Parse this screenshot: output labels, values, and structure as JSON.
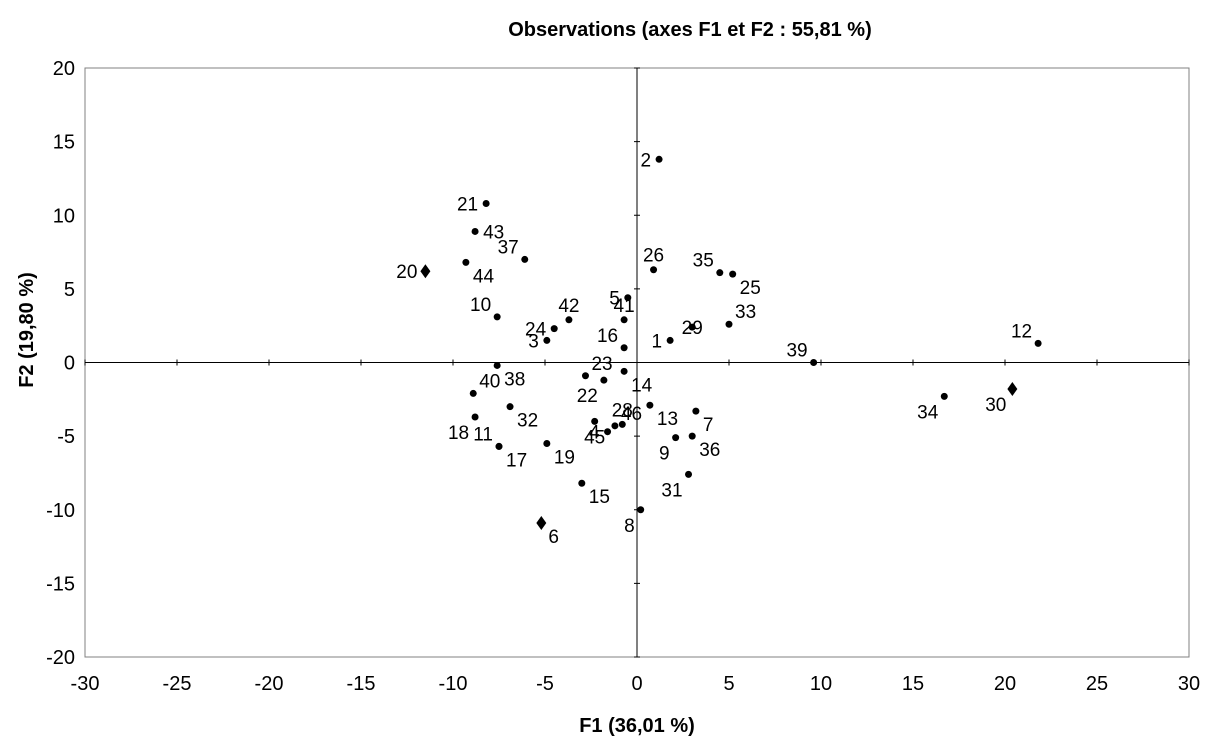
{
  "chart_data": {
    "type": "scatter",
    "title": "Observations (axes F1 et F2 : 55,81 %)",
    "xlabel": "F1 (36,01 %)",
    "ylabel": "F2 (19,80 %)",
    "xlim": [
      -30,
      30
    ],
    "ylim": [
      -20,
      20
    ],
    "x_ticks": [
      -30,
      -25,
      -20,
      -15,
      -10,
      -5,
      0,
      5,
      10,
      15,
      20,
      25,
      30
    ],
    "y_ticks": [
      -20,
      -15,
      -10,
      -5,
      0,
      5,
      10,
      15,
      20
    ],
    "x_tick_labels": [
      "-30",
      "-25",
      "-20",
      "-15",
      "-10",
      "-5",
      "0",
      "5",
      "10",
      "15",
      "20",
      "25",
      "30"
    ],
    "y_tick_labels": [
      "-20",
      "-15",
      "-10",
      "-5",
      "0",
      "5",
      "10",
      "15",
      "20"
    ],
    "grid": false,
    "legend": "none",
    "point_color": "#000000",
    "points": [
      {
        "label": "1",
        "x": 1.8,
        "y": 1.5,
        "marker": "circle",
        "label_pos": "left"
      },
      {
        "label": "2",
        "x": 1.2,
        "y": 13.8,
        "marker": "circle",
        "label_pos": "left"
      },
      {
        "label": "3",
        "x": -4.9,
        "y": 1.5,
        "marker": "circle",
        "label_pos": "left"
      },
      {
        "label": "4",
        "x": -1.6,
        "y": -4.7,
        "marker": "circle",
        "label_pos": "left"
      },
      {
        "label": "5",
        "x": -0.5,
        "y": 4.4,
        "marker": "circle",
        "label_pos": "left"
      },
      {
        "label": "6",
        "x": -5.2,
        "y": -10.9,
        "marker": "diamond",
        "label_pos": "below-right"
      },
      {
        "label": "7",
        "x": 3.2,
        "y": -3.3,
        "marker": "circle",
        "label_pos": "below-right"
      },
      {
        "label": "8",
        "x": 0.2,
        "y": -10.0,
        "marker": "circle",
        "label_pos": "below-left"
      },
      {
        "label": "9",
        "x": 2.1,
        "y": -5.1,
        "marker": "circle",
        "label_pos": "below-left"
      },
      {
        "label": "10",
        "x": -7.6,
        "y": 3.1,
        "marker": "circle",
        "label_pos": "above-left"
      },
      {
        "label": "11",
        "x": -7.5,
        "y": -5.7,
        "marker": "circle",
        "label_pos": "above-left"
      },
      {
        "label": "12",
        "x": 21.8,
        "y": 1.3,
        "marker": "circle",
        "label_pos": "above-left"
      },
      {
        "label": "13",
        "x": 0.7,
        "y": -2.9,
        "marker": "circle",
        "label_pos": "below-right"
      },
      {
        "label": "14",
        "x": -0.7,
        "y": -0.6,
        "marker": "circle",
        "label_pos": "below-right"
      },
      {
        "label": "15",
        "x": -3.0,
        "y": -8.2,
        "marker": "circle",
        "label_pos": "below-right"
      },
      {
        "label": "16",
        "x": -0.7,
        "y": 1.0,
        "marker": "circle",
        "label_pos": "above-left"
      },
      {
        "label": "17",
        "x": -7.5,
        "y": -5.7,
        "marker": "circle",
        "label_pos": "below-right"
      },
      {
        "label": "18",
        "x": -8.8,
        "y": -3.7,
        "marker": "circle",
        "label_pos": "below-left"
      },
      {
        "label": "19",
        "x": -4.9,
        "y": -5.5,
        "marker": "circle",
        "label_pos": "below-right"
      },
      {
        "label": "20",
        "x": -11.5,
        "y": 6.2,
        "marker": "diamond",
        "label_pos": "left"
      },
      {
        "label": "21",
        "x": -8.2,
        "y": 10.8,
        "marker": "circle",
        "label_pos": "left"
      },
      {
        "label": "22",
        "x": -1.8,
        "y": -1.2,
        "marker": "circle",
        "label_pos": "below-left"
      },
      {
        "label": "23",
        "x": -2.8,
        "y": -0.9,
        "marker": "circle",
        "label_pos": "above-right"
      },
      {
        "label": "24",
        "x": -4.5,
        "y": 2.3,
        "marker": "circle",
        "label_pos": "left"
      },
      {
        "label": "25",
        "x": 5.2,
        "y": 6.0,
        "marker": "circle",
        "label_pos": "below-right"
      },
      {
        "label": "26",
        "x": 0.9,
        "y": 6.3,
        "marker": "circle",
        "label_pos": "above"
      },
      {
        "label": "28",
        "x": -0.8,
        "y": -4.2,
        "marker": "circle",
        "label_pos": "above"
      },
      {
        "label": "29",
        "x": 3.0,
        "y": 2.4,
        "marker": "circle",
        "label_pos": "center"
      },
      {
        "label": "30",
        "x": 20.4,
        "y": -1.8,
        "marker": "diamond",
        "label_pos": "below-left"
      },
      {
        "label": "31",
        "x": 2.8,
        "y": -7.6,
        "marker": "circle",
        "label_pos": "below-left"
      },
      {
        "label": "32",
        "x": -6.9,
        "y": -3.0,
        "marker": "circle",
        "label_pos": "below-right"
      },
      {
        "label": "33",
        "x": 5.0,
        "y": 2.6,
        "marker": "circle",
        "label_pos": "above-right"
      },
      {
        "label": "34",
        "x": 16.7,
        "y": -2.3,
        "marker": "circle",
        "label_pos": "below-left"
      },
      {
        "label": "35",
        "x": 4.5,
        "y": 6.1,
        "marker": "circle",
        "label_pos": "above-left"
      },
      {
        "label": "36",
        "x": 3.0,
        "y": -5.0,
        "marker": "circle",
        "label_pos": "below-right"
      },
      {
        "label": "37",
        "x": -6.1,
        "y": 7.0,
        "marker": "circle",
        "label_pos": "above-left"
      },
      {
        "label": "38",
        "x": -7.6,
        "y": -0.2,
        "marker": "circle",
        "label_pos": "below-right"
      },
      {
        "label": "39",
        "x": 9.6,
        "y": 0.0,
        "marker": "circle",
        "label_pos": "above-left"
      },
      {
        "label": "40",
        "x": -8.9,
        "y": -2.1,
        "marker": "circle",
        "label_pos": "above-right"
      },
      {
        "label": "41",
        "x": -0.7,
        "y": 2.9,
        "marker": "circle",
        "label_pos": "above"
      },
      {
        "label": "42",
        "x": -3.7,
        "y": 2.9,
        "marker": "circle",
        "label_pos": "above"
      },
      {
        "label": "43",
        "x": -8.8,
        "y": 8.9,
        "marker": "circle",
        "label_pos": "right"
      },
      {
        "label": "44",
        "x": -9.3,
        "y": 6.8,
        "marker": "circle",
        "label_pos": "below-right"
      },
      {
        "label": "45",
        "x": -2.3,
        "y": -4.0,
        "marker": "circle",
        "label_pos": "below"
      },
      {
        "label": "46",
        "x": -1.2,
        "y": -4.3,
        "marker": "circle",
        "label_pos": "above-right"
      }
    ]
  }
}
